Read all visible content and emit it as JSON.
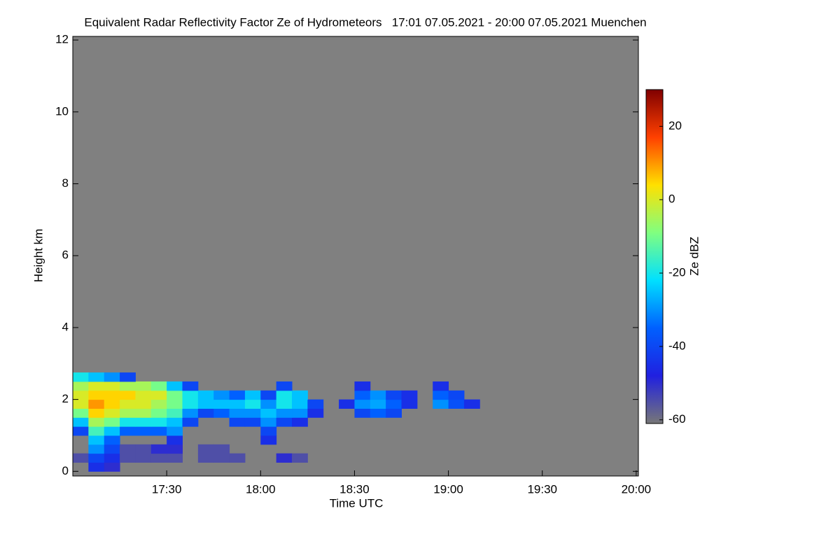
{
  "chart_data": {
    "type": "heatmap",
    "title": "Equivalent Radar Reflectivity Factor Ze of Hydrometeors   17:01 07.05.2021 - 20:00 07.05.2021 Muenchen",
    "x_label": "Time UTC",
    "y_label": "Height km",
    "colorbar_label": "Ze dBZ",
    "background": "#808080",
    "xlim": [
      0,
      180.7
    ],
    "xticks": [
      {
        "value": 30,
        "label": "17:30"
      },
      {
        "value": 60,
        "label": "18:00"
      },
      {
        "value": 90,
        "label": "18:30"
      },
      {
        "value": 120,
        "label": "19:00"
      },
      {
        "value": 150,
        "label": "19:30"
      },
      {
        "value": 180,
        "label": "20:00"
      }
    ],
    "ylim": [
      -0.13,
      12.1
    ],
    "yticks": [
      0,
      2,
      4,
      6,
      8,
      10,
      12
    ],
    "zlim": [
      -61,
      30
    ],
    "zticks": [
      -60,
      -40,
      -20,
      0,
      20
    ],
    "colormap": [
      "#777777",
      "#2020e0",
      "#0060ff",
      "#00e0ff",
      "#80ff80",
      "#ffe000",
      "#ff4000",
      "#800000"
    ],
    "x_edges": [
      0,
      5,
      10,
      15,
      20,
      25,
      30,
      35,
      40,
      45,
      50,
      55,
      60,
      65,
      70,
      75,
      80,
      85,
      90,
      95,
      100,
      105,
      110,
      115,
      120,
      125,
      130,
      135,
      140,
      145,
      150,
      155,
      160,
      165,
      170,
      175,
      180
    ],
    "y_edges": [
      0,
      0.25,
      0.5,
      0.75,
      1,
      1.25,
      1.5,
      1.75,
      2,
      2.25,
      2.5,
      2.75
    ],
    "z": [
      [
        null,
        -45,
        -50,
        null,
        null,
        null,
        null,
        null,
        null,
        null,
        null,
        null,
        null,
        null,
        null,
        null,
        null,
        null,
        null,
        null,
        null,
        null,
        null,
        null,
        null,
        null,
        null,
        null,
        null,
        null,
        null,
        null,
        null,
        null,
        null,
        null
      ],
      [
        -55,
        -40,
        -45,
        -55,
        -55,
        -55,
        -55,
        null,
        -55,
        -55,
        -55,
        null,
        null,
        -50,
        -55,
        null,
        null,
        null,
        null,
        null,
        null,
        null,
        null,
        null,
        null,
        null,
        null,
        null,
        null,
        null,
        null,
        null,
        null,
        null,
        null,
        null
      ],
      [
        null,
        -30,
        -40,
        -55,
        -55,
        -50,
        -50,
        null,
        -55,
        -55,
        null,
        null,
        null,
        null,
        null,
        null,
        null,
        null,
        null,
        null,
        null,
        null,
        null,
        null,
        null,
        null,
        null,
        null,
        null,
        null,
        null,
        null,
        null,
        null,
        null,
        null
      ],
      [
        null,
        -25,
        -35,
        null,
        null,
        null,
        -45,
        null,
        null,
        null,
        null,
        null,
        -45,
        null,
        null,
        null,
        null,
        null,
        null,
        null,
        null,
        null,
        null,
        null,
        null,
        null,
        null,
        null,
        null,
        null,
        null,
        null,
        null,
        null,
        null,
        null
      ],
      [
        -40,
        -15,
        -25,
        -35,
        -35,
        -35,
        -30,
        null,
        null,
        null,
        null,
        null,
        -40,
        null,
        null,
        null,
        null,
        null,
        null,
        null,
        null,
        null,
        null,
        null,
        null,
        null,
        null,
        null,
        null,
        null,
        null,
        null,
        null,
        null,
        null,
        null
      ],
      [
        -25,
        -5,
        -10,
        -20,
        -20,
        -20,
        -25,
        -40,
        null,
        null,
        -40,
        -40,
        -30,
        -40,
        -45,
        null,
        null,
        null,
        null,
        null,
        null,
        null,
        null,
        null,
        null,
        null,
        null,
        null,
        null,
        null,
        null,
        null,
        null,
        null,
        null,
        null
      ],
      [
        -10,
        5,
        0,
        -5,
        -5,
        -10,
        -15,
        -30,
        -40,
        -35,
        -30,
        -30,
        -25,
        -30,
        -30,
        -45,
        null,
        null,
        -40,
        -35,
        -40,
        null,
        null,
        null,
        null,
        null,
        null,
        null,
        null,
        null,
        null,
        null,
        null,
        null,
        null,
        null
      ],
      [
        0,
        10,
        5,
        0,
        0,
        -5,
        -10,
        -20,
        -25,
        -25,
        -25,
        -20,
        -30,
        -20,
        -25,
        -40,
        null,
        -45,
        -30,
        -28,
        -35,
        -45,
        null,
        -30,
        -38,
        -45,
        null,
        null,
        null,
        null,
        null,
        null,
        null,
        null,
        null,
        null
      ],
      [
        0,
        5,
        5,
        5,
        0,
        0,
        -10,
        -20,
        -25,
        -30,
        -35,
        -25,
        -40,
        -20,
        -25,
        null,
        null,
        null,
        -35,
        -30,
        -40,
        -45,
        null,
        -35,
        -40,
        null,
        null,
        null,
        null,
        null,
        null,
        null,
        null,
        null,
        null,
        null
      ],
      [
        -5,
        0,
        0,
        -5,
        -5,
        -10,
        -25,
        -40,
        null,
        null,
        null,
        null,
        null,
        -40,
        null,
        null,
        null,
        null,
        -45,
        null,
        null,
        null,
        null,
        -45,
        null,
        null,
        null,
        null,
        null,
        null,
        null,
        null,
        null,
        null,
        null,
        null
      ],
      [
        -20,
        -25,
        -30,
        -40,
        null,
        null,
        null,
        null,
        null,
        null,
        null,
        null,
        null,
        null,
        null,
        null,
        null,
        null,
        null,
        null,
        null,
        null,
        null,
        null,
        null,
        null,
        null,
        null,
        null,
        null,
        null,
        null,
        null,
        null,
        null,
        null
      ]
    ]
  }
}
